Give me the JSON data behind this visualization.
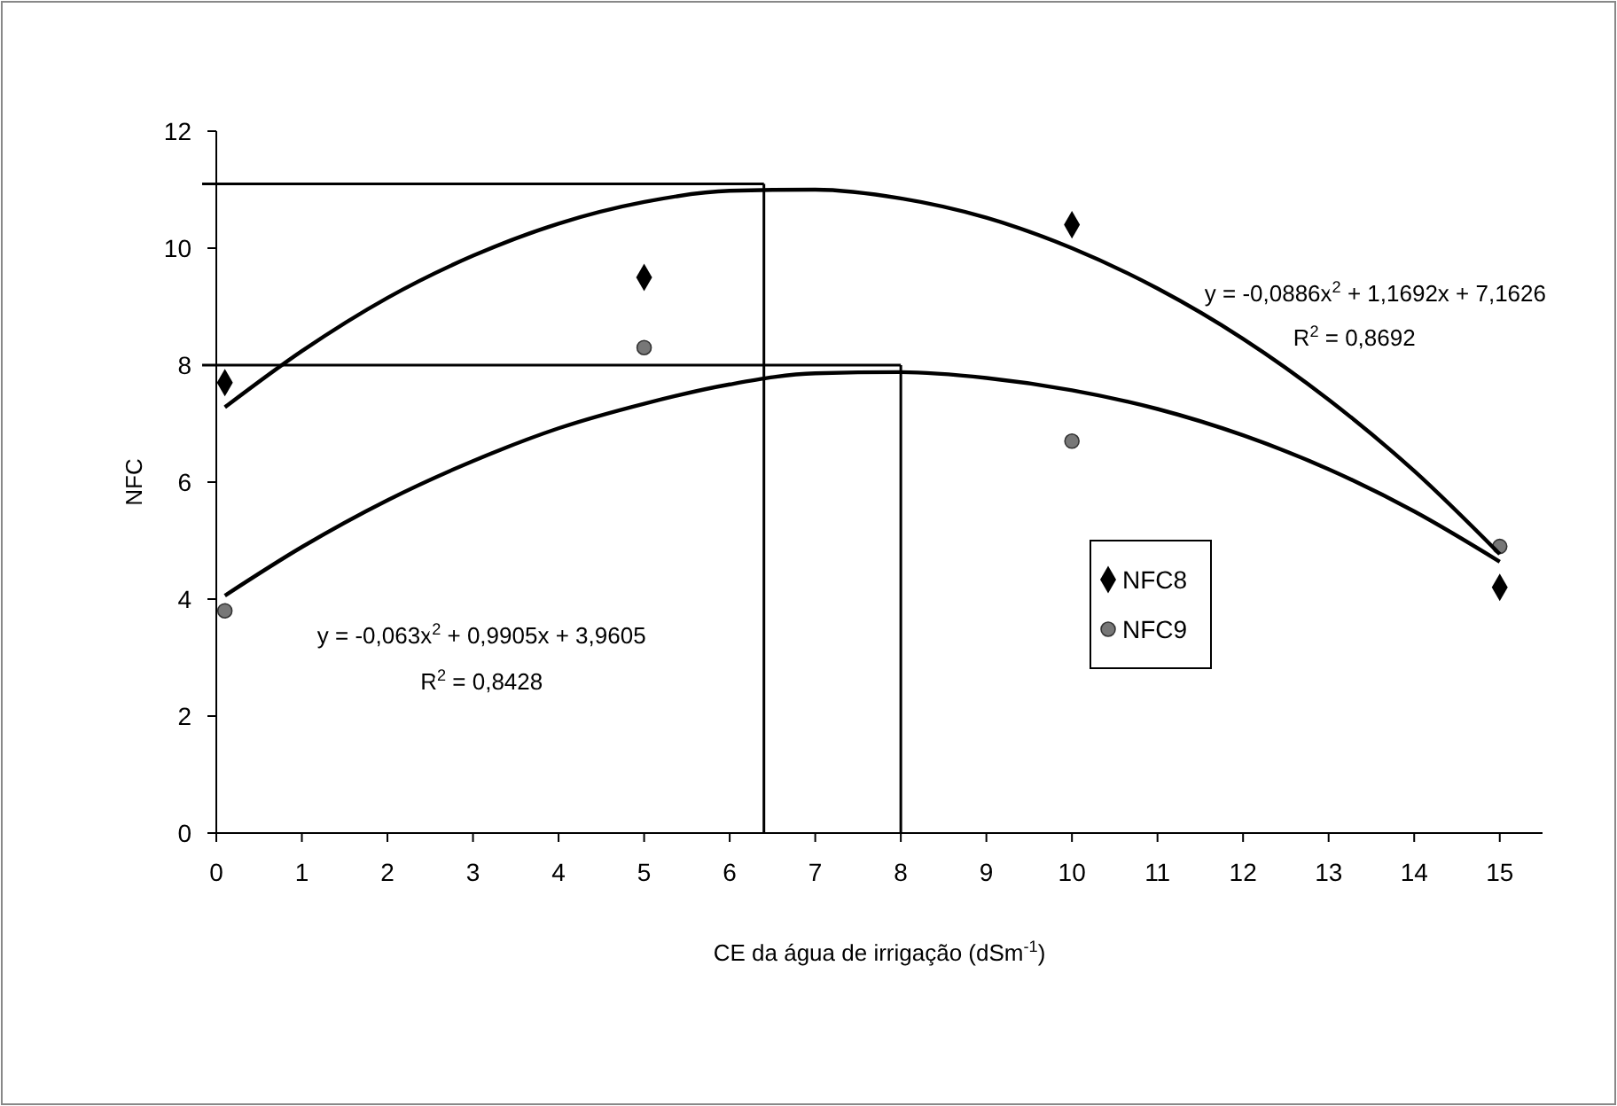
{
  "chart_data": {
    "type": "scatter",
    "xlabel": "CE da água de irrigação (dSm$^{-1}$)",
    "ylabel": "NFC",
    "xlim": [
      0,
      15.5
    ],
    "ylim": [
      0,
      12
    ],
    "xticks": [
      0,
      1,
      2,
      3,
      4,
      5,
      6,
      7,
      8,
      9,
      10,
      11,
      12,
      13,
      14,
      15
    ],
    "yticks": [
      0,
      2,
      4,
      6,
      8,
      10,
      12
    ],
    "grid": false,
    "legend": "right",
    "series": [
      {
        "name": "NFC8",
        "color": "#000000",
        "marker": "diamond",
        "x": [
          0.1,
          5,
          10,
          15
        ],
        "values": [
          7.7,
          9.5,
          10.4,
          4.2
        ]
      },
      {
        "name": "NFC9",
        "color": "#777777",
        "marker": "circle",
        "x": [
          0.1,
          5,
          10,
          15
        ],
        "values": [
          3.8,
          8.3,
          6.7,
          4.9
        ]
      },
      {
        "type": "line",
        "color": "#000000",
        "marker": "none",
        "x": [
          0.1,
          1,
          2,
          3,
          4,
          5,
          6,
          7,
          8,
          9,
          10,
          11,
          12,
          13,
          14,
          15
        ],
        "values": [
          7.28,
          8.24,
          9.15,
          9.87,
          10.42,
          10.79,
          10.98,
          11.0,
          10.85,
          10.52,
          10.0,
          9.31,
          8.45,
          7.41,
          6.19,
          4.77
        ]
      },
      {
        "type": "line",
        "color": "#000000",
        "marker": "none",
        "x": [
          0.1,
          1,
          2,
          3,
          4,
          5,
          6,
          7,
          8,
          9,
          10,
          11,
          12,
          13,
          14,
          15
        ],
        "values": [
          4.06,
          4.89,
          5.69,
          6.36,
          6.92,
          7.34,
          7.67,
          7.86,
          7.88,
          7.78,
          7.57,
          7.25,
          6.8,
          6.22,
          5.5,
          4.64
        ]
      }
    ],
    "ref_lines": [
      {
        "axis": "y",
        "value": 11.1
      },
      {
        "axis": "x",
        "value": 6.4
      },
      {
        "axis": "y",
        "value": 8
      },
      {
        "axis": "x",
        "value": 8
      }
    ],
    "annotations": [
      "y = -0,0886x$^{2}$ + 1,1692x + 7,1626",
      "R$^{2}$ = 0,8692",
      "y = -0,063x$^{2}$ + 0,9905x + 3,9605",
      "R$^{2}$ = 0,8428"
    ]
  }
}
